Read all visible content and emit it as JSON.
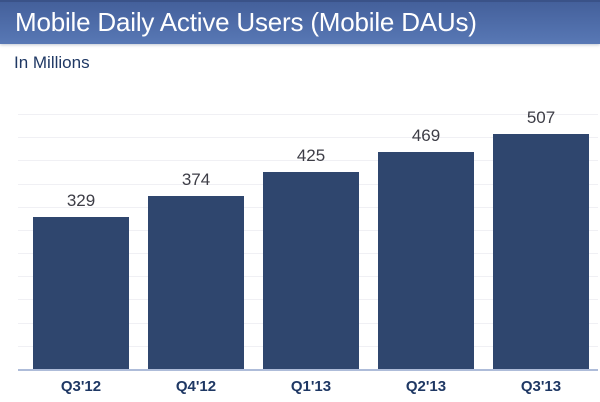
{
  "header": {
    "title": "Mobile Daily Active Users (Mobile DAUs)"
  },
  "chart_data": {
    "type": "bar",
    "title": "Mobile Daily Active Users (Mobile DAUs)",
    "subtitle": "In Millions",
    "units": "millions of users",
    "categories": [
      "Q3'12",
      "Q4'12",
      "Q1'13",
      "Q2'13",
      "Q3'13"
    ],
    "values": [
      329,
      374,
      425,
      469,
      507
    ],
    "xlabel": "",
    "ylabel": "In Millions",
    "ylim": [
      0,
      550
    ],
    "gridlines": "faint horizontal every 50 units",
    "legend": "none",
    "value_labels_position": "above bars"
  },
  "colors": {
    "header_gradient_top": "#44609b",
    "header_gradient_bottom": "#5878b5",
    "header_top_edge": "#3a5288",
    "title_text": "#ffffff",
    "subtitle_text": "#1f3864",
    "bar_fill": "#2f466e",
    "value_label_text": "#3d3d46",
    "category_label_text": "#1f3864",
    "axis_line": "#aebcd9",
    "gridline": "#f0f0f4",
    "background": "#ffffff"
  }
}
